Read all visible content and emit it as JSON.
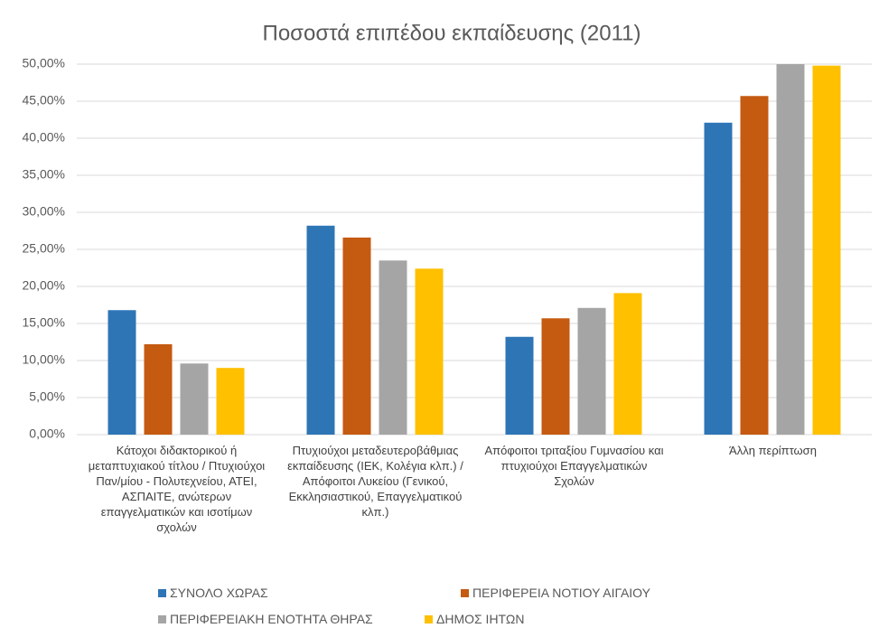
{
  "chart_data": {
    "type": "bar",
    "title": "Ποσοστά επιπέδου εκπαίδευσης  (2011)",
    "categories": [
      "Κάτοχοι διδακτορικού ή μεταπτυχιακού τίτλου / Πτυχιούχοι Παν/μίου - Πολυτεχνείου, ΑΤΕΙ, ΑΣΠΑΙΤΕ, ανώτερων επαγγελματικών και ισοτίμων σχολών",
      "Πτυχιούχοι μεταδευτεροβάθμιας εκπαίδευσης (ΙΕΚ, Κολέγια κλπ.)  / Απόφοιτοι Λυκείου (Γενικού, Εκκλησιαστικού, Επαγγελματικού κλπ.)",
      "Απόφοιτοι τριταξίου Γυμνασίου και πτυχιούχοι Επαγγελματικών Σχολών",
      "Άλλη περίπτωση"
    ],
    "series": [
      {
        "name": "ΣΥΝΟΛΟ ΧΩΡΑΣ",
        "color": "#2e75b6",
        "values": [
          16.8,
          28.2,
          13.2,
          42.1
        ]
      },
      {
        "name": "ΠΕΡΙΦΕΡΕΙΑ ΝΟΤΙΟΥ ΑΙΓΑΙΟΥ",
        "color": "#c55a11",
        "values": [
          12.2,
          26.6,
          15.7,
          45.7
        ]
      },
      {
        "name": "ΠΕΡΙΦΕΡΕΙΑΚΗ ΕΝΟΤΗΤΑ ΘΗΡΑΣ",
        "color": "#a5a5a5",
        "values": [
          9.6,
          23.5,
          17.1,
          50.0
        ]
      },
      {
        "name": "ΔΗΜΟΣ ΙΗΤΩΝ",
        "color": "#ffc000",
        "values": [
          9.0,
          22.4,
          19.1,
          49.8
        ]
      }
    ],
    "ylim": [
      0,
      50
    ],
    "yticks": [
      {
        "value": 0,
        "label": "0,00%"
      },
      {
        "value": 5,
        "label": "5,00%"
      },
      {
        "value": 10,
        "label": "10,00%"
      },
      {
        "value": 15,
        "label": "15,00%"
      },
      {
        "value": 20,
        "label": "20,00%"
      },
      {
        "value": 25,
        "label": "25,00%"
      },
      {
        "value": 30,
        "label": "30,00%"
      },
      {
        "value": 35,
        "label": "35,00%"
      },
      {
        "value": 40,
        "label": "40,00%"
      },
      {
        "value": 45,
        "label": "45,00%"
      },
      {
        "value": 50,
        "label": "50,00%"
      }
    ],
    "grid": true,
    "legend": "bottom"
  }
}
